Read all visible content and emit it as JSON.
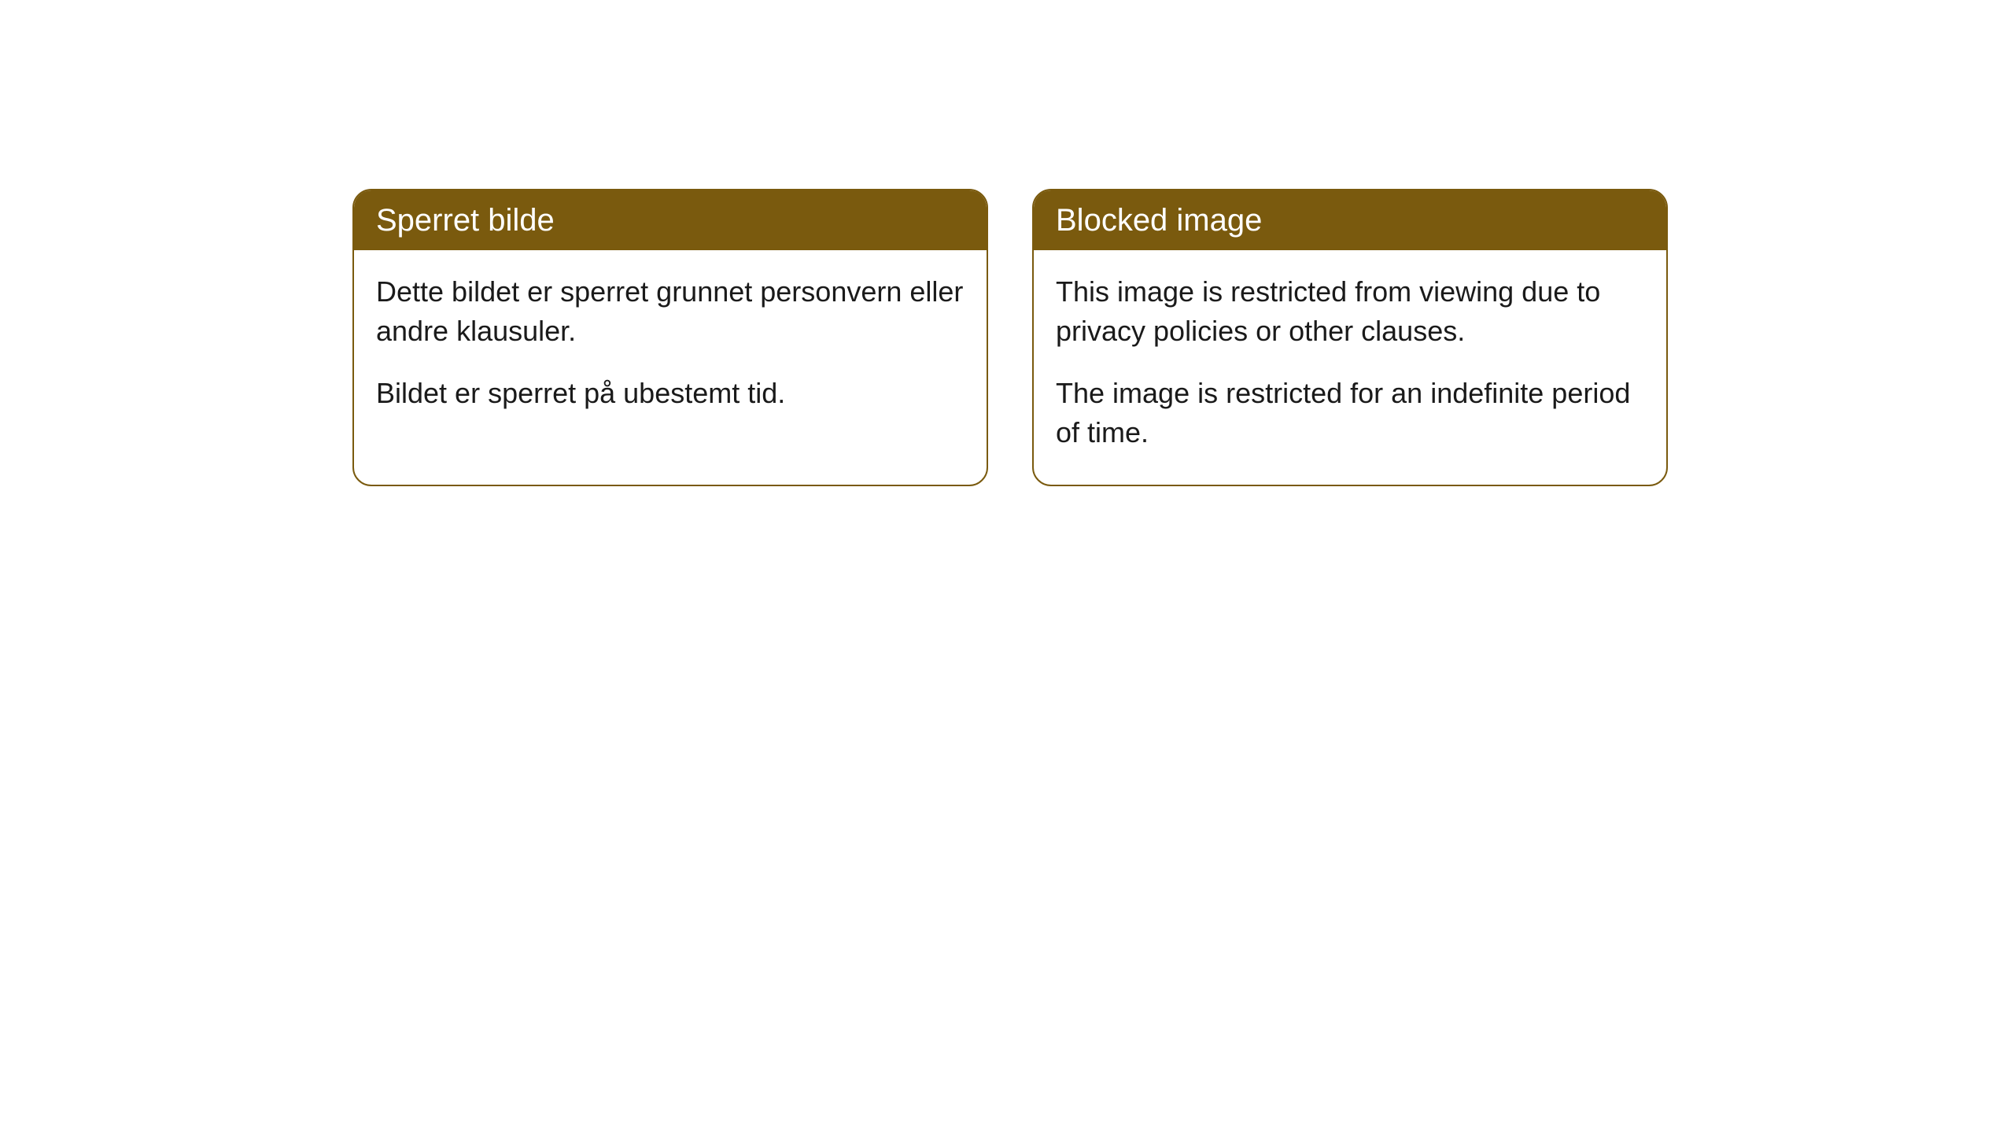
{
  "cards": [
    {
      "title": "Sperret bilde",
      "line1": "Dette bildet er sperret grunnet personvern eller andre klausuler.",
      "line2": "Bildet er sperret på ubestemt tid."
    },
    {
      "title": "Blocked image",
      "line1": "This image is restricted from viewing due to privacy policies or other clauses.",
      "line2": "The image is restricted for an indefinite period of time."
    }
  ],
  "styling": {
    "card_border_color": "#7a5a0e",
    "card_header_bg": "#7a5a0e",
    "card_header_text_color": "#ffffff",
    "body_bg": "#ffffff",
    "body_text_color": "#1a1a1a",
    "card_border_radius": 24,
    "header_font_size": 40,
    "body_font_size": 36
  }
}
